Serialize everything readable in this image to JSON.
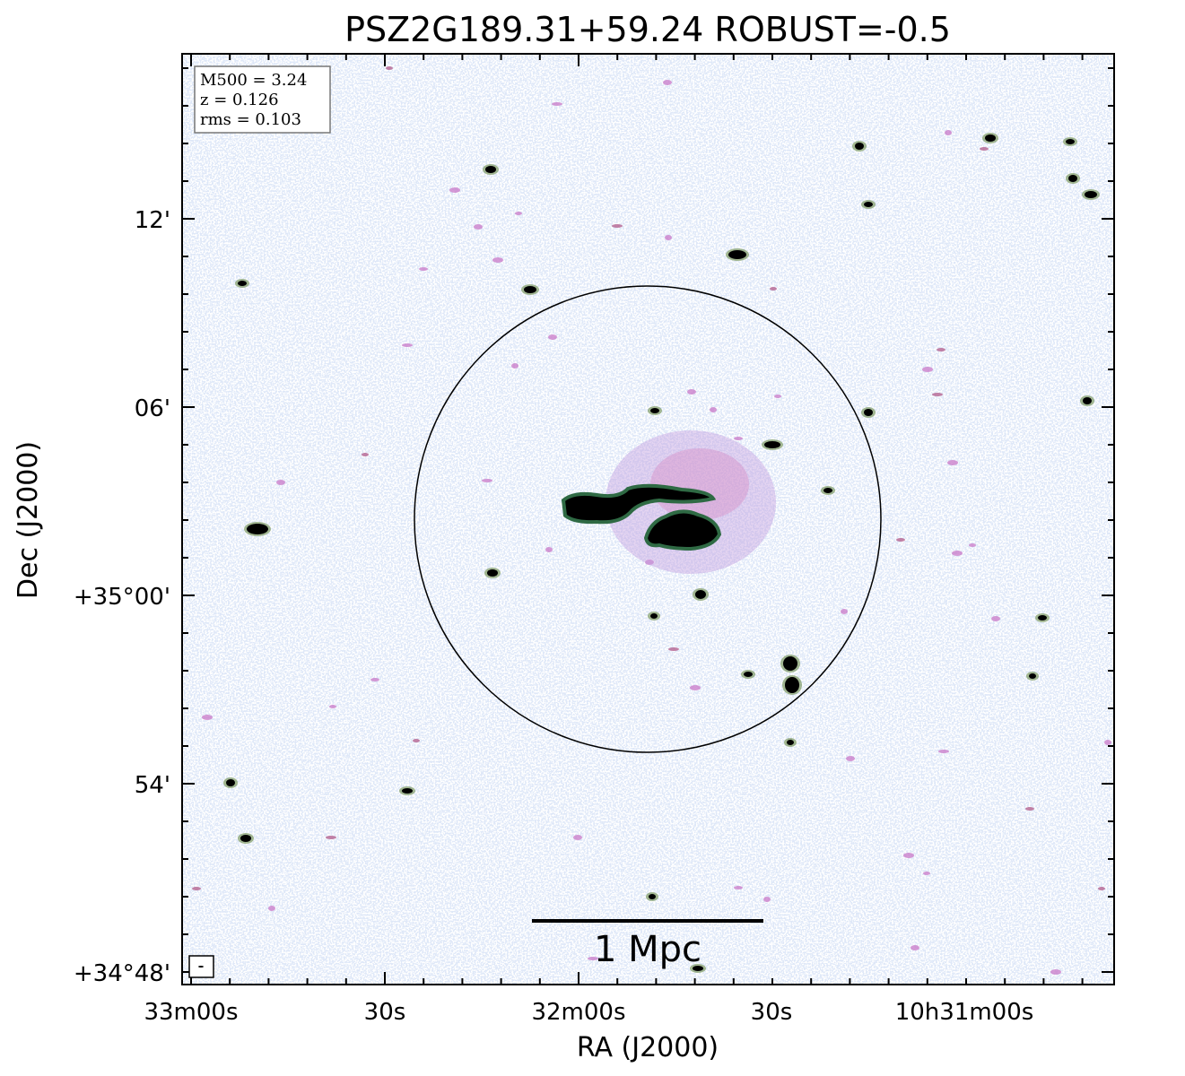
{
  "chart_data": {
    "type": "heatmap",
    "title": "PSZ2G189.31+59.24 ROBUST=-0.5",
    "xlabel": "RA (J2000)",
    "ylabel": "Dec (J2000)",
    "x_ticks": [
      "33m00s",
      "30s",
      "32m00s",
      "30s",
      "10h31m00s"
    ],
    "y_ticks": [
      "+34°48'",
      "54'",
      "+35°00'",
      "06'",
      "12'"
    ],
    "info": {
      "m500": "M500 = 3.24",
      "z": "z = 0.126",
      "rms": "rms = 0.103"
    },
    "scalebar_label": "1 Mpc",
    "colormap": [
      "#ffffff",
      "#b8c8ee",
      "#c080d8",
      "#d890b0",
      "#3a6a3a",
      "#000000"
    ]
  }
}
